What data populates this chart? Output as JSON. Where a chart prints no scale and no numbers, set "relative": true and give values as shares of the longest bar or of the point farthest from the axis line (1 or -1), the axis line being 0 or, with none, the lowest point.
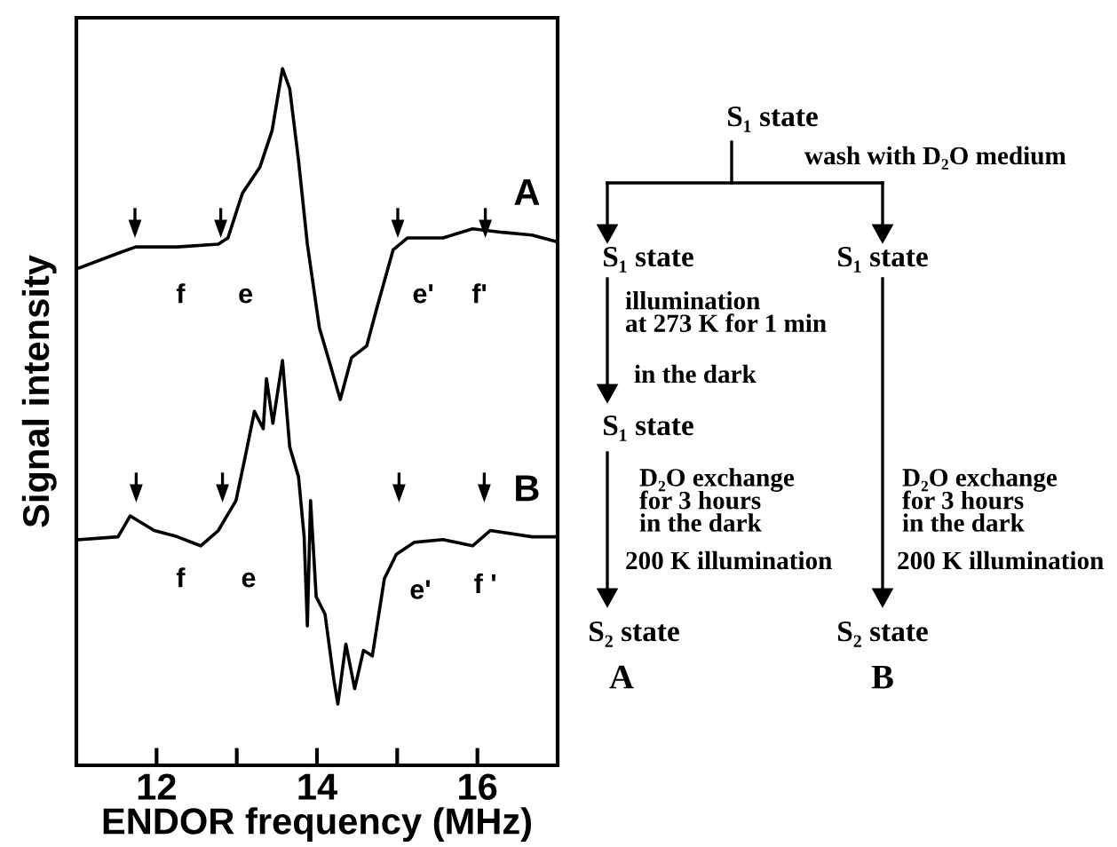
{
  "chart_data": [
    {
      "type": "line",
      "relative": true,
      "xlabel": "ENDOR frequency (MHz)",
      "ylabel": "Signal intensity",
      "xlim": [
        11,
        17
      ],
      "xticks": [
        12,
        {
          "value": 13,
          "label": null
        },
        14,
        {
          "value": 15,
          "label": null
        },
        16
      ],
      "legend": false,
      "grid": false,
      "marker": "none",
      "line_style": "solid",
      "series": [
        {
          "color": "#000000",
          "x": [
            11.04,
            11.52,
            11.74,
            12.26,
            12.77,
            12.89,
            13.07,
            13.29,
            13.44,
            13.57,
            13.66,
            13.77,
            13.88,
            14.03,
            14.14,
            14.29,
            14.43,
            14.62,
            14.76,
            14.95,
            15.13,
            15.57,
            15.94,
            16.31,
            16.68,
            16.97
          ],
          "values": [
            0.714,
            0.735,
            0.744,
            0.744,
            0.748,
            0.757,
            0.821,
            0.859,
            0.911,
            1.0,
            0.971,
            0.868,
            0.748,
            0.628,
            0.585,
            0.525,
            0.585,
            0.602,
            0.662,
            0.74,
            0.757,
            0.757,
            0.77,
            0.765,
            0.761,
            0.752
          ]
        },
        {
          "color": "#000000",
          "x": [
            11.04,
            11.52,
            11.67,
            11.97,
            12.26,
            12.55,
            12.77,
            12.99,
            13.1,
            13.22,
            13.33,
            13.37,
            13.45,
            13.57,
            13.66,
            13.77,
            13.84,
            13.88,
            13.92,
            13.99,
            14.1,
            14.21,
            14.26,
            14.36,
            14.47,
            14.58,
            14.69,
            14.84,
            14.99,
            15.21,
            15.57,
            15.94,
            16.16,
            16.68,
            16.97
          ],
          "values": [
            0.324,
            0.328,
            0.358,
            0.337,
            0.328,
            0.315,
            0.337,
            0.38,
            0.44,
            0.508,
            0.483,
            0.555,
            0.491,
            0.581,
            0.457,
            0.414,
            0.328,
            0.2,
            0.38,
            0.242,
            0.217,
            0.123,
            0.088,
            0.174,
            0.11,
            0.165,
            0.157,
            0.268,
            0.303,
            0.32,
            0.324,
            0.315,
            0.337,
            0.328,
            0.328
          ]
        }
      ],
      "annotations": [
        "f",
        "e",
        "e'",
        "f'",
        "A",
        "f",
        "e",
        "e'",
        "f '",
        "B"
      ]
    },
    {
      "type": "other",
      "annotations": [
        "S₁ state",
        "wash with D₂O medium",
        "S₁ state",
        "S₁ state",
        "illumination\nat 273 K for 1 min",
        "in the dark",
        "S₁ state",
        "D₂O exchange\nfor 3 hours\nin the dark",
        "200 K illumination",
        "S₂ state",
        "A",
        "D₂O exchange\nfor 3 hours\nin the dark",
        "200 K illumination",
        "S₂ state",
        "B"
      ]
    }
  ]
}
